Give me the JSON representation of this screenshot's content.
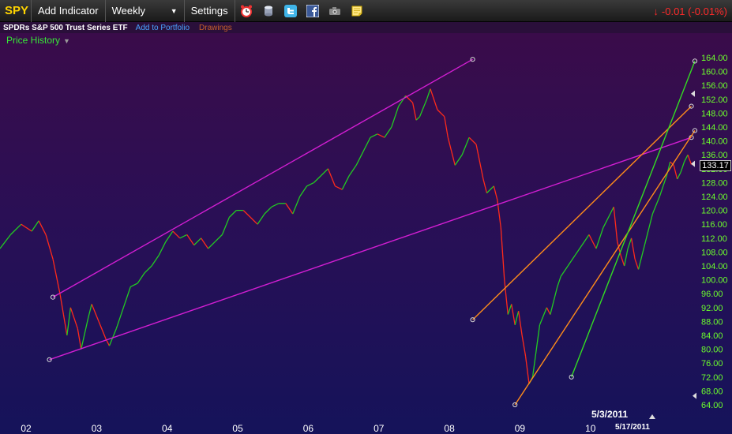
{
  "toolbar": {
    "ticker": "SPY",
    "add_indicator": "Add Indicator",
    "interval": "Weekly",
    "settings": "Settings",
    "change": "-0.01 (-0.01%)",
    "icons": [
      "alarm-clock-icon",
      "database-icon",
      "twitter-icon",
      "facebook-icon",
      "camera-icon",
      "note-icon"
    ]
  },
  "subbar": {
    "fund_name": "SPDRs S&P 500 Trust Series ETF",
    "add_to_portfolio": "Add to Portfolio",
    "drawings": "Drawings"
  },
  "panel": {
    "label": "Price History"
  },
  "current_price": "133.17",
  "date_labels": {
    "range_start": "5/3/2011",
    "range_end": "5/17/2011"
  },
  "colors": {
    "up": "#22cc22",
    "down": "#ff2a1a",
    "channel_magenta": "#d21ed2",
    "channel_orange": "#ff8c1a",
    "trend_green": "#33dd22",
    "axis": "#6cff2c"
  },
  "chart_data": {
    "type": "line",
    "title": "",
    "xlabel": "",
    "ylabel": "",
    "x_ticks": [
      "02",
      "03",
      "04",
      "05",
      "06",
      "07",
      "08",
      "09",
      "10"
    ],
    "y_ticks": [
      64,
      68,
      72,
      76,
      80,
      84,
      88,
      92,
      96,
      100,
      104,
      108,
      112,
      116,
      120,
      124,
      128,
      132,
      136,
      140,
      144,
      148,
      152,
      156,
      160,
      164
    ],
    "ylim": [
      62,
      166
    ],
    "xlim": [
      2001.65,
      2011.5
    ],
    "series": [
      {
        "points": [
          [
            2001.65,
            109
          ],
          [
            2001.8,
            113
          ],
          [
            2001.95,
            116
          ],
          [
            2002.1,
            114
          ],
          [
            2002.2,
            117
          ],
          [
            2002.3,
            113
          ],
          [
            2002.4,
            106
          ],
          [
            2002.5,
            96
          ],
          [
            2002.55,
            90
          ],
          [
            2002.6,
            84
          ],
          [
            2002.65,
            92
          ],
          [
            2002.75,
            86
          ],
          [
            2002.8,
            80
          ],
          [
            2002.9,
            89
          ],
          [
            2002.95,
            93
          ],
          [
            2003.05,
            88
          ],
          [
            2003.15,
            83
          ],
          [
            2003.2,
            81
          ],
          [
            2003.3,
            86
          ],
          [
            2003.4,
            92
          ],
          [
            2003.5,
            98
          ],
          [
            2003.6,
            99
          ],
          [
            2003.7,
            102
          ],
          [
            2003.8,
            104
          ],
          [
            2003.9,
            107
          ],
          [
            2004.0,
            111
          ],
          [
            2004.1,
            114
          ],
          [
            2004.2,
            112
          ],
          [
            2004.3,
            113
          ],
          [
            2004.4,
            110
          ],
          [
            2004.5,
            112
          ],
          [
            2004.6,
            109
          ],
          [
            2004.7,
            111
          ],
          [
            2004.8,
            113
          ],
          [
            2004.9,
            118
          ],
          [
            2005.0,
            120
          ],
          [
            2005.1,
            120
          ],
          [
            2005.2,
            118
          ],
          [
            2005.3,
            116
          ],
          [
            2005.4,
            119
          ],
          [
            2005.5,
            121
          ],
          [
            2005.6,
            122
          ],
          [
            2005.7,
            122
          ],
          [
            2005.8,
            119
          ],
          [
            2005.9,
            124
          ],
          [
            2006.0,
            127
          ],
          [
            2006.1,
            128
          ],
          [
            2006.2,
            130
          ],
          [
            2006.3,
            132
          ],
          [
            2006.4,
            127
          ],
          [
            2006.5,
            126
          ],
          [
            2006.6,
            130
          ],
          [
            2006.7,
            133
          ],
          [
            2006.8,
            137
          ],
          [
            2006.9,
            141
          ],
          [
            2007.0,
            142
          ],
          [
            2007.1,
            141
          ],
          [
            2007.2,
            144
          ],
          [
            2007.3,
            150
          ],
          [
            2007.4,
            153
          ],
          [
            2007.5,
            151
          ],
          [
            2007.55,
            146
          ],
          [
            2007.6,
            147
          ],
          [
            2007.7,
            152
          ],
          [
            2007.75,
            155
          ],
          [
            2007.85,
            149
          ],
          [
            2007.95,
            147
          ],
          [
            2008.0,
            141
          ],
          [
            2008.05,
            137
          ],
          [
            2008.1,
            133
          ],
          [
            2008.2,
            136
          ],
          [
            2008.3,
            141
          ],
          [
            2008.4,
            139
          ],
          [
            2008.5,
            129
          ],
          [
            2008.55,
            125
          ],
          [
            2008.65,
            127
          ],
          [
            2008.7,
            123
          ],
          [
            2008.75,
            115
          ],
          [
            2008.8,
            100
          ],
          [
            2008.85,
            90
          ],
          [
            2008.9,
            93
          ],
          [
            2008.95,
            87
          ],
          [
            2009.0,
            91
          ],
          [
            2009.05,
            84
          ],
          [
            2009.1,
            78
          ],
          [
            2009.15,
            70
          ],
          [
            2009.2,
            72
          ],
          [
            2009.3,
            87
          ],
          [
            2009.4,
            92
          ],
          [
            2009.45,
            90
          ],
          [
            2009.5,
            94
          ],
          [
            2009.55,
            98
          ],
          [
            2009.6,
            101
          ],
          [
            2009.7,
            104
          ],
          [
            2009.8,
            107
          ],
          [
            2009.9,
            110
          ],
          [
            2010.0,
            113
          ],
          [
            2010.1,
            109
          ],
          [
            2010.2,
            115
          ],
          [
            2010.3,
            119
          ],
          [
            2010.35,
            121
          ],
          [
            2010.4,
            111
          ],
          [
            2010.45,
            107
          ],
          [
            2010.5,
            104
          ],
          [
            2010.55,
            109
          ],
          [
            2010.6,
            112
          ],
          [
            2010.65,
            106
          ],
          [
            2010.7,
            103
          ],
          [
            2010.8,
            111
          ],
          [
            2010.9,
            119
          ],
          [
            2011.0,
            124
          ],
          [
            2011.05,
            127
          ],
          [
            2011.1,
            130
          ],
          [
            2011.15,
            134
          ],
          [
            2011.2,
            133
          ],
          [
            2011.25,
            129
          ],
          [
            2011.3,
            131
          ],
          [
            2011.35,
            134
          ],
          [
            2011.4,
            136
          ],
          [
            2011.45,
            133.2
          ]
        ]
      }
    ],
    "drawings": [
      {
        "color": "channel_magenta",
        "from": [
          2002.4,
          95
        ],
        "to": [
          2008.35,
          163.5
        ]
      },
      {
        "color": "channel_magenta",
        "from": [
          2002.35,
          77
        ],
        "to": [
          2011.45,
          141
        ]
      },
      {
        "color": "channel_orange",
        "from": [
          2008.35,
          88.5
        ],
        "to": [
          2011.45,
          150
        ]
      },
      {
        "color": "channel_orange",
        "from": [
          2008.95,
          64
        ],
        "to": [
          2011.5,
          143
        ]
      },
      {
        "color": "trend_green",
        "from": [
          2009.75,
          72
        ],
        "to": [
          2011.5,
          163
        ]
      }
    ]
  }
}
